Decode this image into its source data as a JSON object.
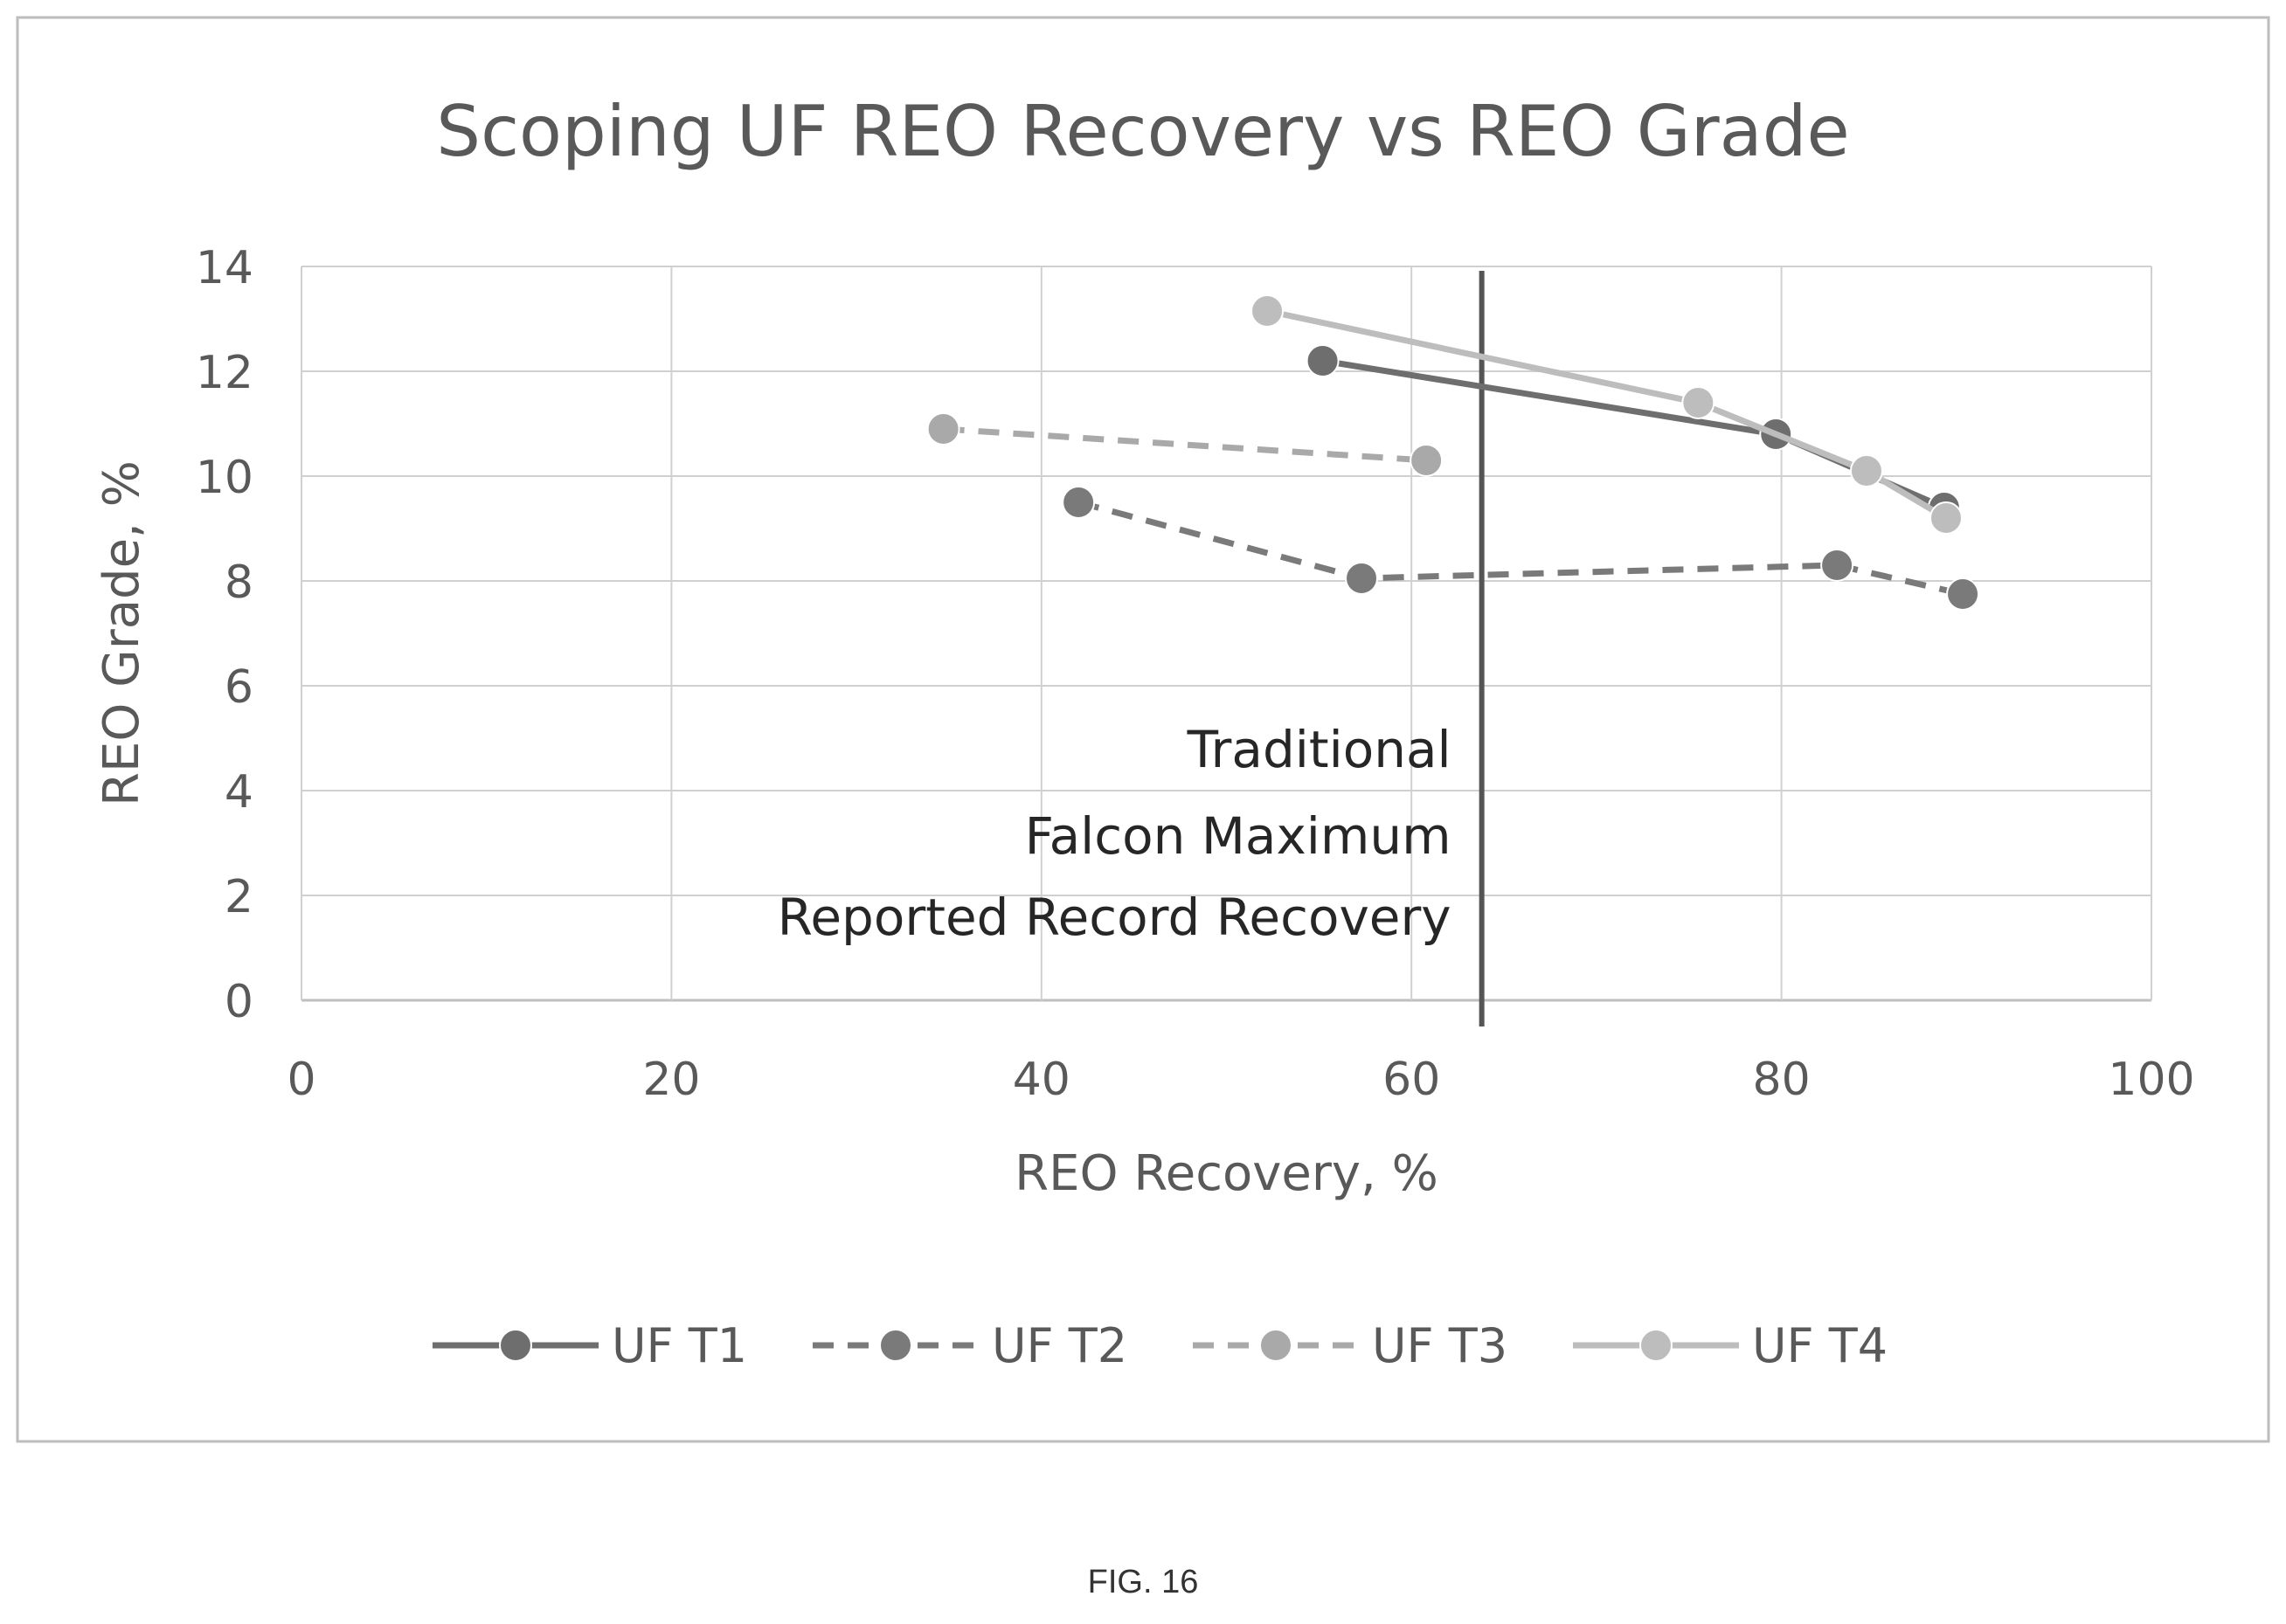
{
  "figure_label": "FIG. 16",
  "colors": {
    "frame": "#bdbdbd",
    "grid": "#d0d0d0",
    "text": "#595959",
    "annotation_text": "#262626",
    "reference_line": "#555555"
  },
  "chart_data": {
    "type": "line",
    "title": "Scoping UF REO Recovery vs REO Grade",
    "xlabel": "REO Recovery, %",
    "ylabel": "REO Grade, %",
    "xlim": [
      0,
      100
    ],
    "ylim": [
      0,
      14
    ],
    "x_ticks": [
      "0",
      "20",
      "40",
      "60",
      "80",
      "100"
    ],
    "y_ticks": [
      "0",
      "2",
      "4",
      "6",
      "8",
      "10",
      "12",
      "14"
    ],
    "grid": true,
    "legend_position": "bottom",
    "series": [
      {
        "name": "UF T1",
        "style": "solid",
        "color": "#6e6e6e",
        "points": [
          [
            55.2,
            12.2
          ],
          [
            79.7,
            10.8
          ],
          [
            88.8,
            9.4
          ]
        ]
      },
      {
        "name": "UF T2",
        "style": "dashed",
        "color": "#7a7a7a",
        "points": [
          [
            42.0,
            9.5
          ],
          [
            57.3,
            8.05
          ],
          [
            83.0,
            8.3
          ],
          [
            89.8,
            7.75
          ]
        ]
      },
      {
        "name": "UF T3",
        "style": "dashed",
        "color": "#a9a9a9",
        "points": [
          [
            34.7,
            10.9
          ],
          [
            60.8,
            10.3
          ]
        ]
      },
      {
        "name": "UF T4",
        "style": "solid",
        "color": "#bdbdbd",
        "points": [
          [
            52.2,
            13.15
          ],
          [
            75.5,
            11.4
          ],
          [
            84.6,
            10.1
          ],
          [
            88.9,
            9.2
          ]
        ]
      }
    ],
    "reference_line": {
      "x": 63.8,
      "label_lines": [
        "Traditional",
        "Falcon Maximum",
        "Reported Record Recovery"
      ]
    }
  }
}
